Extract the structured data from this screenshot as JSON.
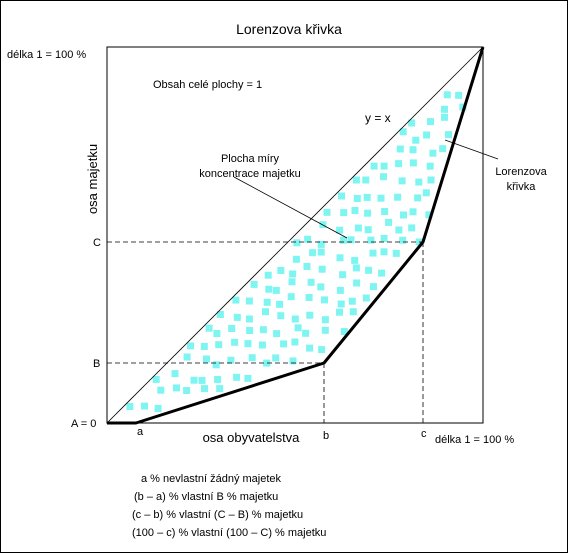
{
  "title": "Lorenzova křivka",
  "labels": {
    "y_top": "délka 1 = 100 %",
    "area_note": "Obsah celé plochy = 1",
    "diagonal": "y = x",
    "concentration_line1": "Plocha míry",
    "concentration_line2": "koncentrace majetku",
    "curve_line1": "Lorenzova",
    "curve_line2": "křivka",
    "y_axis": "osa majetku",
    "x_axis": "osa obyvatelstva",
    "x_right": "délka 1 = 100 %",
    "origin": "A = 0",
    "y_b": "B",
    "y_c": "C",
    "x_a": "a",
    "x_b": "b",
    "x_c": "c"
  },
  "legend": [
    "a %  nevlastní žádný majetek",
    "(b – a) %  vlastní B % majetku",
    "(c – b) %  vlastní (C – B) % majetku",
    "(100 – c) %  vlastní (100 – C) % majetku"
  ],
  "colors": {
    "fill_squares": "#7ff5f2",
    "line": "#000000"
  }
}
